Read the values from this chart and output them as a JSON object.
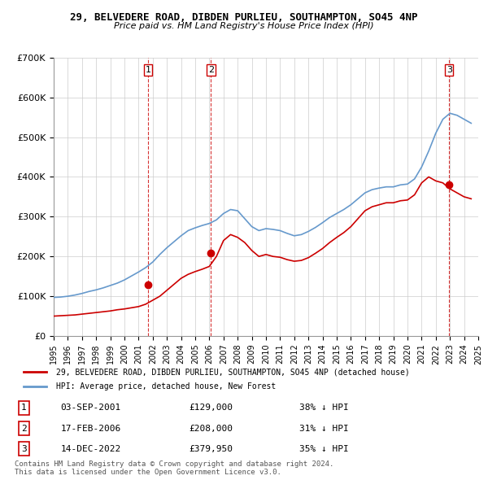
{
  "title1": "29, BELVEDERE ROAD, DIBDEN PURLIEU, SOUTHAMPTON, SO45 4NP",
  "title2": "Price paid vs. HM Land Registry's House Price Index (HPI)",
  "legend_label_red": "29, BELVEDERE ROAD, DIBDEN PURLIEU, SOUTHAMPTON, SO45 4NP (detached house)",
  "legend_label_blue": "HPI: Average price, detached house, New Forest",
  "footer1": "Contains HM Land Registry data © Crown copyright and database right 2024.",
  "footer2": "This data is licensed under the Open Government Licence v3.0.",
  "transactions": [
    {
      "num": 1,
      "date": "03-SEP-2001",
      "price": "£129,000",
      "pct": "38% ↓ HPI",
      "year": 2001.67,
      "value": 129000
    },
    {
      "num": 2,
      "date": "17-FEB-2006",
      "price": "£208,000",
      "pct": "31% ↓ HPI",
      "year": 2006.12,
      "value": 208000
    },
    {
      "num": 3,
      "date": "14-DEC-2022",
      "price": "£379,950",
      "pct": "35% ↓ HPI",
      "year": 2022.95,
      "value": 379950
    }
  ],
  "hpi_x": [
    1995,
    1995.5,
    1996,
    1996.5,
    1997,
    1997.5,
    1998,
    1998.5,
    1999,
    1999.5,
    2000,
    2000.5,
    2001,
    2001.5,
    2002,
    2002.5,
    2003,
    2003.5,
    2004,
    2004.5,
    2005,
    2005.5,
    2006,
    2006.5,
    2007,
    2007.5,
    2008,
    2008.5,
    2009,
    2009.5,
    2010,
    2010.5,
    2011,
    2011.5,
    2012,
    2012.5,
    2013,
    2013.5,
    2014,
    2014.5,
    2015,
    2015.5,
    2016,
    2016.5,
    2017,
    2017.5,
    2018,
    2018.5,
    2019,
    2019.5,
    2020,
    2020.5,
    2021,
    2021.5,
    2022,
    2022.5,
    2023,
    2023.5,
    2024,
    2024.5
  ],
  "hpi_y": [
    97000,
    98000,
    100000,
    103000,
    107000,
    112000,
    116000,
    121000,
    127000,
    133000,
    141000,
    151000,
    161000,
    172000,
    186000,
    205000,
    222000,
    237000,
    252000,
    265000,
    272000,
    278000,
    283000,
    292000,
    308000,
    318000,
    315000,
    295000,
    275000,
    265000,
    270000,
    268000,
    265000,
    258000,
    252000,
    255000,
    263000,
    273000,
    285000,
    298000,
    308000,
    318000,
    330000,
    345000,
    360000,
    368000,
    372000,
    375000,
    375000,
    380000,
    382000,
    395000,
    425000,
    465000,
    510000,
    545000,
    560000,
    555000,
    545000,
    535000
  ],
  "price_x": [
    1995,
    1995.5,
    1996,
    1996.5,
    1997,
    1997.5,
    1998,
    1998.5,
    1999,
    1999.5,
    2000,
    2000.5,
    2001,
    2001.5,
    2002,
    2002.5,
    2003,
    2003.5,
    2004,
    2004.5,
    2005,
    2005.5,
    2006,
    2006.5,
    2007,
    2007.5,
    2008,
    2008.5,
    2009,
    2009.5,
    2010,
    2010.5,
    2011,
    2011.5,
    2012,
    2012.5,
    2013,
    2013.5,
    2014,
    2014.5,
    2015,
    2015.5,
    2016,
    2016.5,
    2017,
    2017.5,
    2018,
    2018.5,
    2019,
    2019.5,
    2020,
    2020.5,
    2021,
    2021.5,
    2022,
    2022.5,
    2023,
    2023.5,
    2024,
    2024.5
  ],
  "price_y": [
    50000,
    51000,
    52000,
    53000,
    55000,
    57000,
    59000,
    61000,
    63000,
    66000,
    68000,
    71000,
    74000,
    80000,
    90000,
    100000,
    115000,
    130000,
    145000,
    155000,
    162000,
    168000,
    175000,
    200000,
    240000,
    255000,
    248000,
    235000,
    215000,
    200000,
    205000,
    200000,
    198000,
    192000,
    188000,
    190000,
    197000,
    208000,
    220000,
    235000,
    248000,
    260000,
    275000,
    295000,
    315000,
    325000,
    330000,
    335000,
    335000,
    340000,
    342000,
    355000,
    385000,
    400000,
    390000,
    385000,
    370000,
    360000,
    350000,
    345000
  ],
  "vline_years": [
    2001.67,
    2006.12,
    2022.95
  ],
  "color_red": "#cc0000",
  "color_blue": "#6699cc",
  "color_vline": "#cc0000",
  "color_grid": "#cccccc",
  "ylim": [
    0,
    700000
  ],
  "xlim_min": 1995,
  "xlim_max": 2025,
  "xticks": [
    1995,
    1996,
    1997,
    1998,
    1999,
    2000,
    2001,
    2002,
    2003,
    2004,
    2005,
    2006,
    2007,
    2008,
    2009,
    2010,
    2011,
    2012,
    2013,
    2014,
    2015,
    2016,
    2017,
    2018,
    2019,
    2020,
    2021,
    2022,
    2023,
    2024,
    2025
  ],
  "yticks": [
    0,
    100000,
    200000,
    300000,
    400000,
    500000,
    600000,
    700000
  ],
  "ytick_labels": [
    "£0",
    "£100K",
    "£200K",
    "£300K",
    "£400K",
    "£500K",
    "£600K",
    "£700K"
  ]
}
